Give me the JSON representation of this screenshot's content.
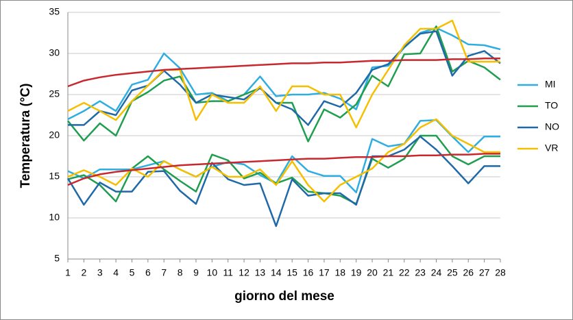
{
  "chart_data": {
    "type": "line",
    "y_label": "Temperatura (°C)",
    "x_label": "giorno del mese",
    "x": [
      1,
      2,
      3,
      4,
      5,
      6,
      7,
      8,
      9,
      10,
      11,
      12,
      13,
      14,
      15,
      16,
      17,
      18,
      19,
      20,
      21,
      22,
      23,
      24,
      25,
      26,
      27,
      28
    ],
    "xlim": [
      1,
      28
    ],
    "ylim": [
      5,
      35
    ],
    "yticks": [
      5,
      10,
      15,
      20,
      25,
      30,
      35
    ],
    "grid": true,
    "legend": "right",
    "series": [
      {
        "name": "MI",
        "color": "#2eaee0",
        "values": [
          22,
          23,
          24.2,
          23,
          26.2,
          26.8,
          30,
          28.2,
          25,
          25.2,
          24.2,
          25,
          27.2,
          24.8,
          25,
          25,
          25.2,
          24.5,
          23.2,
          28.3,
          28.5,
          30.7,
          32.5,
          33.1,
          32.2,
          31.1,
          31,
          30.5
        ],
        "min_values": [
          15.7,
          14.8,
          15.9,
          15.9,
          15.9,
          16.4,
          16.9,
          15.9,
          15,
          16.2,
          16.8,
          16.5,
          15.2,
          14.2,
          17.5,
          15.7,
          15.1,
          15.1,
          13.1,
          19.6,
          18.7,
          19,
          21.8,
          21.9,
          19.9,
          18,
          19.9,
          19.9
        ]
      },
      {
        "name": "TO",
        "color": "#1f9e4f",
        "values": [
          21.8,
          19.4,
          21.5,
          20,
          24.2,
          25.3,
          26.7,
          27.2,
          24,
          24.2,
          24.2,
          25,
          25.8,
          24,
          24,
          19.3,
          23.2,
          22.2,
          23.8,
          27.3,
          26,
          29.9,
          30,
          33.3,
          27.8,
          29.1,
          28.3,
          26.8
        ],
        "min_values": [
          14.7,
          15.2,
          14,
          12,
          16,
          17.5,
          15.9,
          14.5,
          13.2,
          17.7,
          17,
          14.8,
          15.5,
          14.2,
          14.9,
          13.2,
          13,
          12.7,
          11.7,
          17.2,
          16.1,
          17.2,
          20,
          20,
          17.5,
          16.5,
          17.5,
          17.5
        ]
      },
      {
        "name": "NO",
        "color": "#1f69a8",
        "values": [
          21.3,
          21.3,
          23,
          22.5,
          25.5,
          26.1,
          27.9,
          26.2,
          24,
          25,
          24.7,
          24.4,
          25.8,
          24,
          23.2,
          21.3,
          24.2,
          23.5,
          25.2,
          28,
          28.7,
          30.8,
          32.4,
          32.7,
          27.3,
          29.7,
          30.3,
          28.8
        ],
        "min_values": [
          14.8,
          11.6,
          14.3,
          13.2,
          13.2,
          15.6,
          15.7,
          13.3,
          11.7,
          16.7,
          14.7,
          14,
          14.2,
          9,
          14.7,
          12.7,
          13,
          13,
          11.6,
          17.5,
          17.5,
          18.3,
          19.9,
          18.3,
          16.3,
          14.2,
          16.3,
          16.3
        ]
      },
      {
        "name": "VR",
        "color": "#f5bf00",
        "values": [
          23,
          24,
          23,
          21.9,
          24.2,
          26.1,
          28,
          28,
          21.9,
          25,
          24,
          24,
          26,
          23,
          26,
          26,
          25,
          25,
          21,
          25,
          28,
          31,
          33,
          33,
          34,
          29,
          29,
          29
        ],
        "min_values": [
          15,
          15.8,
          15,
          14,
          16,
          15,
          16.9,
          15.9,
          15,
          16.2,
          15,
          15,
          15.9,
          14,
          16.9,
          14,
          12,
          14,
          15,
          16,
          18,
          19,
          21,
          22,
          20,
          19,
          18,
          18
        ]
      }
    ],
    "trendlines": [
      {
        "color": "#c8282d",
        "values": [
          26,
          26.7,
          27.1,
          27.4,
          27.6,
          27.8,
          28,
          28.1,
          28.2,
          28.3,
          28.4,
          28.5,
          28.6,
          28.7,
          28.8,
          28.8,
          28.9,
          28.9,
          29,
          29.1,
          29.1,
          29.2,
          29.2,
          29.2,
          29.3,
          29.3,
          29.4,
          29.4
        ]
      },
      {
        "color": "#c8282d",
        "values": [
          14,
          14.8,
          15.3,
          15.6,
          15.8,
          16,
          16.2,
          16.4,
          16.5,
          16.6,
          16.7,
          16.8,
          16.9,
          17,
          17.1,
          17.2,
          17.2,
          17.3,
          17.4,
          17.4,
          17.5,
          17.5,
          17.6,
          17.6,
          17.7,
          17.7,
          17.8,
          17.8
        ]
      }
    ]
  }
}
